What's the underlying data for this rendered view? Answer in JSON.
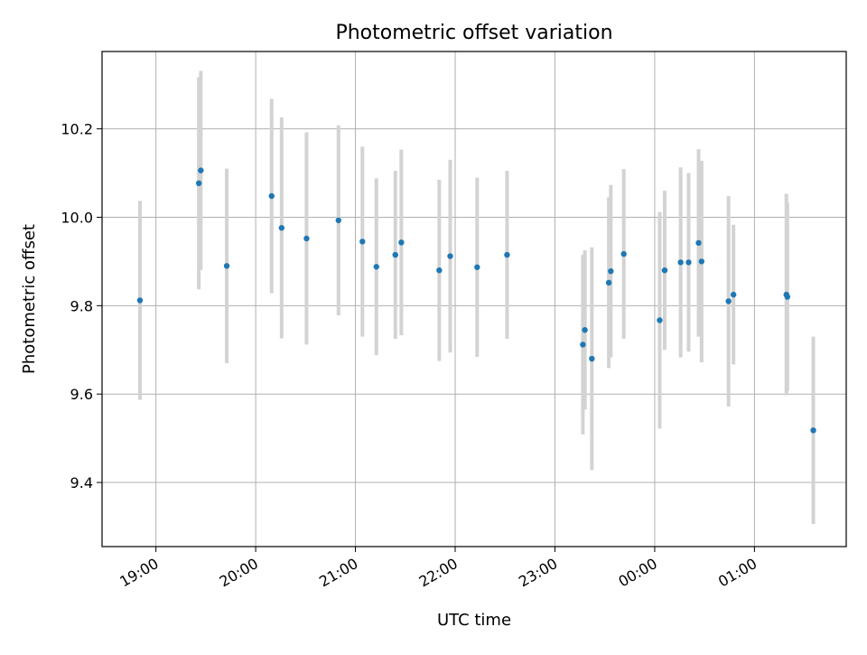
{
  "chart_data": {
    "type": "scatter",
    "title": "Photometric offset variation",
    "xlabel": "UTC time",
    "ylabel": "Photometric offset",
    "x_ticks": [
      "19:00",
      "20:00",
      "21:00",
      "22:00",
      "23:00",
      "00:00",
      "01:00"
    ],
    "y_ticks": [
      "9.4",
      "9.6",
      "9.8",
      "10.0",
      "10.2"
    ],
    "grid": true,
    "marker_color": "#1f77b4",
    "errorbar_color": "#d3d3d3",
    "x_unit": "hours since 18:00 UTC (tick labels wrap past midnight)",
    "xlim": [
      0.46,
      7.92
    ],
    "ylim": [
      9.255,
      10.375
    ],
    "points": [
      {
        "x": 0.84,
        "y": 9.812,
        "err": 0.225
      },
      {
        "x": 1.43,
        "y": 10.077,
        "err": 0.24
      },
      {
        "x": 1.45,
        "y": 10.106,
        "err": 0.225
      },
      {
        "x": 1.71,
        "y": 9.89,
        "err": 0.22
      },
      {
        "x": 2.16,
        "y": 10.048,
        "err": 0.22
      },
      {
        "x": 2.26,
        "y": 9.976,
        "err": 0.25
      },
      {
        "x": 2.51,
        "y": 9.952,
        "err": 0.24
      },
      {
        "x": 2.83,
        "y": 9.993,
        "err": 0.215
      },
      {
        "x": 3.07,
        "y": 9.945,
        "err": 0.215
      },
      {
        "x": 3.21,
        "y": 9.888,
        "err": 0.2
      },
      {
        "x": 3.4,
        "y": 9.915,
        "err": 0.19
      },
      {
        "x": 3.46,
        "y": 9.943,
        "err": 0.21
      },
      {
        "x": 3.84,
        "y": 9.88,
        "err": 0.205
      },
      {
        "x": 3.95,
        "y": 9.912,
        "err": 0.218
      },
      {
        "x": 4.22,
        "y": 9.887,
        "err": 0.203
      },
      {
        "x": 4.52,
        "y": 9.915,
        "err": 0.19
      },
      {
        "x": 5.28,
        "y": 9.712,
        "err": 0.203
      },
      {
        "x": 5.3,
        "y": 9.745,
        "err": 0.18
      },
      {
        "x": 5.37,
        "y": 9.68,
        "err": 0.252
      },
      {
        "x": 5.54,
        "y": 9.852,
        "err": 0.193
      },
      {
        "x": 5.56,
        "y": 9.878,
        "err": 0.195
      },
      {
        "x": 5.69,
        "y": 9.917,
        "err": 0.192
      },
      {
        "x": 6.05,
        "y": 9.767,
        "err": 0.245
      },
      {
        "x": 6.1,
        "y": 9.88,
        "err": 0.18
      },
      {
        "x": 6.26,
        "y": 9.898,
        "err": 0.215
      },
      {
        "x": 6.34,
        "y": 9.898,
        "err": 0.202
      },
      {
        "x": 6.44,
        "y": 9.942,
        "err": 0.212
      },
      {
        "x": 6.47,
        "y": 9.9,
        "err": 0.228
      },
      {
        "x": 6.74,
        "y": 9.81,
        "err": 0.238
      },
      {
        "x": 6.79,
        "y": 9.825,
        "err": 0.158
      },
      {
        "x": 7.32,
        "y": 9.825,
        "err": 0.228
      },
      {
        "x": 7.33,
        "y": 9.82,
        "err": 0.213
      },
      {
        "x": 7.59,
        "y": 9.518,
        "err": 0.212
      }
    ]
  }
}
